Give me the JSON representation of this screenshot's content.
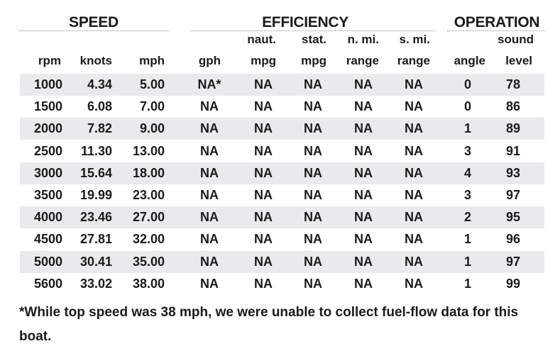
{
  "groups": {
    "speed": "SPEED",
    "efficiency": "EFFICIENCY",
    "operation": "OPERATION"
  },
  "columns": {
    "rpm": {
      "top": "",
      "bottom": "rpm"
    },
    "knots": {
      "top": "",
      "bottom": "knots"
    },
    "mph": {
      "top": "",
      "bottom": "mph"
    },
    "gph": {
      "top": "",
      "bottom": "gph"
    },
    "naut_mpg": {
      "top": "naut.",
      "bottom": "mpg"
    },
    "stat_mpg": {
      "top": "stat.",
      "bottom": "mpg"
    },
    "n_range": {
      "top": "n. mi.",
      "bottom": "range"
    },
    "s_range": {
      "top": "s. mi.",
      "bottom": "range"
    },
    "angle": {
      "top": "",
      "bottom": "angle"
    },
    "sound": {
      "top": "sound",
      "bottom": "level"
    }
  },
  "rows": [
    {
      "rpm": "1000",
      "knots": "4.34",
      "mph": "5.00",
      "gph": "NA*",
      "naut_mpg": "NA",
      "stat_mpg": "NA",
      "n_range": "NA",
      "s_range": "NA",
      "angle": "0",
      "sound": "78"
    },
    {
      "rpm": "1500",
      "knots": "6.08",
      "mph": "7.00",
      "gph": "NA",
      "naut_mpg": "NA",
      "stat_mpg": "NA",
      "n_range": "NA",
      "s_range": "NA",
      "angle": "0",
      "sound": "86"
    },
    {
      "rpm": "2000",
      "knots": "7.82",
      "mph": "9.00",
      "gph": "NA",
      "naut_mpg": "NA",
      "stat_mpg": "NA",
      "n_range": "NA",
      "s_range": "NA",
      "angle": "1",
      "sound": "89"
    },
    {
      "rpm": "2500",
      "knots": "11.30",
      "mph": "13.00",
      "gph": "NA",
      "naut_mpg": "NA",
      "stat_mpg": "NA",
      "n_range": "NA",
      "s_range": "NA",
      "angle": "3",
      "sound": "91"
    },
    {
      "rpm": "3000",
      "knots": "15.64",
      "mph": "18.00",
      "gph": "NA",
      "naut_mpg": "NA",
      "stat_mpg": "NA",
      "n_range": "NA",
      "s_range": "NA",
      "angle": "4",
      "sound": "93"
    },
    {
      "rpm": "3500",
      "knots": "19.99",
      "mph": "23.00",
      "gph": "NA",
      "naut_mpg": "NA",
      "stat_mpg": "NA",
      "n_range": "NA",
      "s_range": "NA",
      "angle": "3",
      "sound": "97"
    },
    {
      "rpm": "4000",
      "knots": "23.46",
      "mph": "27.00",
      "gph": "NA",
      "naut_mpg": "NA",
      "stat_mpg": "NA",
      "n_range": "NA",
      "s_range": "NA",
      "angle": "2",
      "sound": "95"
    },
    {
      "rpm": "4500",
      "knots": "27.81",
      "mph": "32.00",
      "gph": "NA",
      "naut_mpg": "NA",
      "stat_mpg": "NA",
      "n_range": "NA",
      "s_range": "NA",
      "angle": "1",
      "sound": "96"
    },
    {
      "rpm": "5000",
      "knots": "30.41",
      "mph": "35.00",
      "gph": "NA",
      "naut_mpg": "NA",
      "stat_mpg": "NA",
      "n_range": "NA",
      "s_range": "NA",
      "angle": "1",
      "sound": "97"
    },
    {
      "rpm": "5600",
      "knots": "33.02",
      "mph": "38.00",
      "gph": "NA",
      "naut_mpg": "NA",
      "stat_mpg": "NA",
      "n_range": "NA",
      "s_range": "NA",
      "angle": "1",
      "sound": "99"
    }
  ],
  "footnote": "*While top speed was 38 mph, we were unable to collect fuel-flow data for this boat.",
  "colors": {
    "row_shade": "#e9eaec",
    "text": "#1a1a1a",
    "rule": "#8a8a8a"
  }
}
